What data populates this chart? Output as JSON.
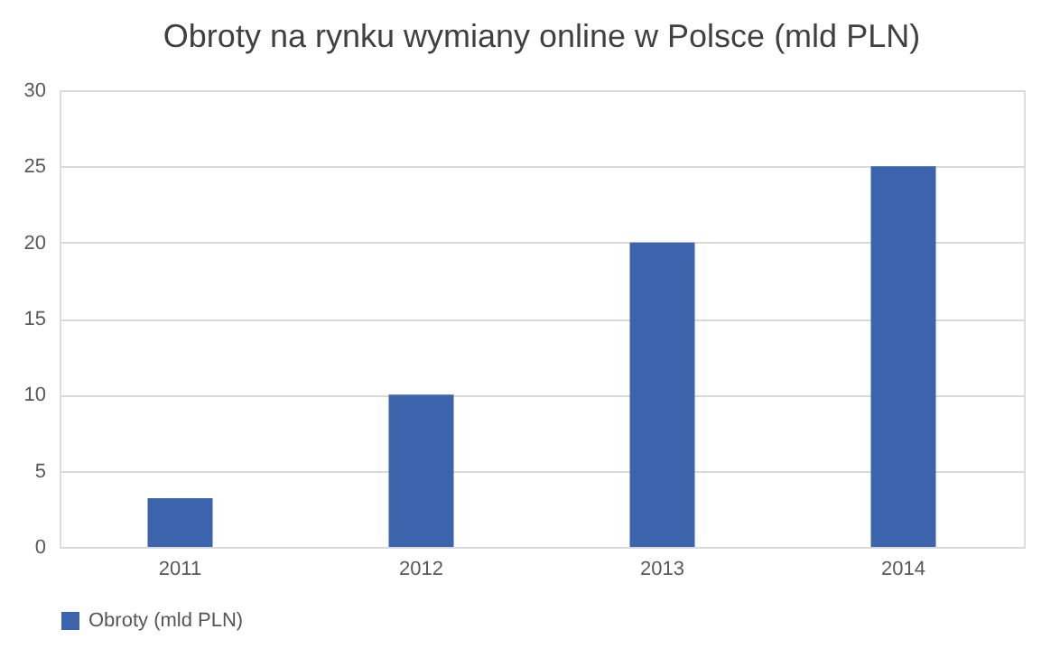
{
  "chart_data": {
    "type": "bar",
    "title": "Obroty na rynku wymiany online w Polsce (mld PLN)",
    "categories": [
      "2011",
      "2012",
      "2013",
      "2014"
    ],
    "series": [
      {
        "name": "Obroty (mld PLN)",
        "color": "#3c64ac",
        "values": [
          3.2,
          10,
          20,
          25
        ]
      }
    ],
    "ylim": [
      0,
      30
    ],
    "yticks": [
      0,
      5,
      10,
      15,
      20,
      25,
      30
    ],
    "grid": "y",
    "legend": "bottom"
  }
}
